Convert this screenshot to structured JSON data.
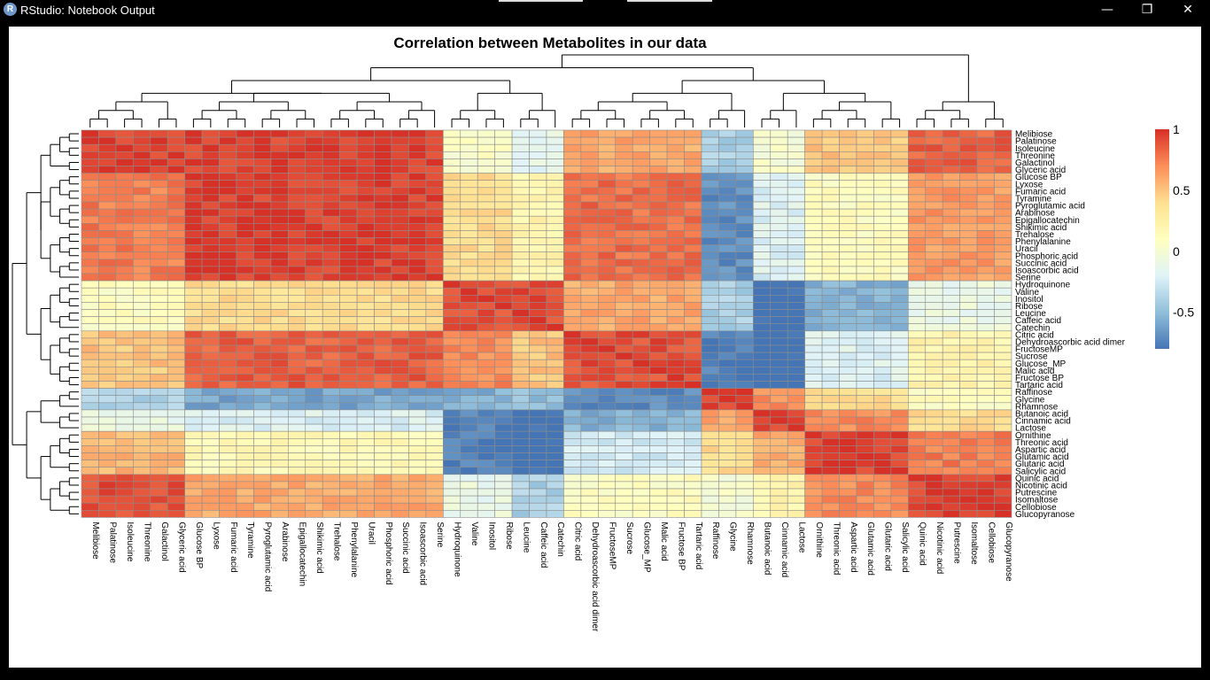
{
  "window": {
    "title": "RStudio: Notebook Output",
    "icon": "r-logo-icon",
    "controls": {
      "minimize": "—",
      "maximize": "❐",
      "close": "✕"
    }
  },
  "chart_data": {
    "type": "heatmap",
    "title": "Correlation between Metabolites in our data",
    "row_labels": [
      "Melibiose",
      "Palatinose",
      "Isoleucine",
      "Threonine",
      "Galactinol",
      "Glyceric acid",
      "Glucose BP",
      "Lyxose",
      "Fumaric acid",
      "Tyramine",
      "Pyroglutamic acid",
      "Arabinose",
      "Epigallocatechin",
      "Shikimic acid",
      "Trehalose",
      "Phenylalanine",
      "Uracil",
      "Phosphoric acid",
      "Succinic acid",
      "Isoascorbic acid",
      "Serine",
      "Hydroquinone",
      "Valine",
      "Inositol",
      "Ribose",
      "Leucine",
      "Caffeic acid",
      "Catechin",
      "Citric acid",
      "Dehydroascorbic acid dimer",
      "FructoseMP",
      "Sucrose",
      "Glucose_MP",
      "Malic acid",
      "Fructose BP",
      "Tartaric acid",
      "Raffinose",
      "Glycine",
      "Rhamnose",
      "Butanoic acid",
      "Cinnamic acid",
      "Lactose",
      "Ornithine",
      "Threonic acid",
      "Aspartic acid",
      "Glutamic acid",
      "Glutaric acid",
      "Salicylic acid",
      "Quinic acid",
      "Nicotinic acid",
      "Putrescine",
      "Isomaltose",
      "Cellobiose",
      "Glucopyranose"
    ],
    "column_labels": [
      "Melibiose",
      "Palatinose",
      "Isoleucine",
      "Threonine",
      "Galactinol",
      "Glyceric acid",
      "Glucose BP",
      "Lyxose",
      "Fumaric acid",
      "Tyramine",
      "Pyroglutamic acid",
      "Arabinose",
      "Epigallocatechin",
      "Shikimic acid",
      "Trehalose",
      "Phenylalanine",
      "Uracil",
      "Phosphoric acid",
      "Succinic acid",
      "Isoascorbic acid",
      "Serine",
      "Hydroquinone",
      "Valine",
      "Inositol",
      "Ribose",
      "Leucine",
      "Caffeic acid",
      "Catechin",
      "Citric acid",
      "Dehydroascorbic acid dimer",
      "FructoseMP",
      "Sucrose",
      "Glucose_MP",
      "Malic acid",
      "Fructose BP",
      "Tartaric acid",
      "Raffinose",
      "Glycine",
      "Rhamnose",
      "Butanoic acid",
      "Cinnamic acid",
      "Lactose",
      "Ornithine",
      "Threonic acid",
      "Aspartic acid",
      "Glutamic acid",
      "Glutaric acid",
      "Salicylic acid",
      "Quinic acid",
      "Nicotinic acid",
      "Putrescine",
      "Isomaltose",
      "Cellobiose",
      "Glucopyranose"
    ],
    "column_groups": [
      {
        "labels": [
          "Melibiose",
          "Palatinose",
          "Isoleucine",
          "Threonine",
          "Galactinol",
          "Glyceric acid"
        ]
      },
      {
        "labels": [
          "Glucose BP",
          "Lyxose",
          "Fumaric acid",
          "Tyramine",
          "Pyroglutamic acid",
          "Arabinose",
          "Epigallocatechin",
          "Shikimic acid",
          "Trehalose",
          "Phenylalanine",
          "Uracil",
          "Phosphoric acid",
          "Succinic acid",
          "Isoascorbic acid",
          "Serine"
        ]
      },
      {
        "labels": [
          "Hydroquinone",
          "Valine",
          "Inositol",
          "Ribose"
        ]
      },
      {
        "labels": [
          "Leucine",
          "Caffeic acid",
          "Catechin"
        ]
      },
      {
        "labels": [
          "Citric acid",
          "Dehydroascorbic acid dimer",
          "FructoseMP",
          "Sucrose",
          "Glucose_MP",
          "Malic acid",
          "Fructose BP",
          "Tartaric acid"
        ]
      },
      {
        "labels": [
          "Raffinose",
          "Glycine",
          "Rhamnose"
        ]
      },
      {
        "labels": [
          "Butanoic acid",
          "Cinnamic acid",
          "Lactose"
        ]
      },
      {
        "labels": [
          "Ornithine",
          "Threonic acid",
          "Aspartic acid",
          "Glutamic acid",
          "Glutaric acid",
          "Salicylic acid"
        ]
      },
      {
        "labels": [
          "Quinic acid",
          "Nicotinic acid",
          "Putrescine",
          "Isomaltose",
          "Cellobiose",
          "Glucopyranose"
        ]
      }
    ],
    "row_groups": [
      {
        "labels": [
          "Melibiose",
          "Palatinose",
          "Isoleucine",
          "Threonine",
          "Galactinol",
          "Glyceric acid"
        ]
      },
      {
        "labels": [
          "Glucose BP",
          "Lyxose",
          "Fumaric acid",
          "Tyramine",
          "Pyroglutamic acid",
          "Arabinose",
          "Epigallocatechin",
          "Shikimic acid",
          "Trehalose",
          "Phenylalanine",
          "Uracil",
          "Phosphoric acid",
          "Succinic acid",
          "Isoascorbic acid",
          "Serine"
        ]
      },
      {
        "labels": [
          "Hydroquinone",
          "Valine",
          "Inositol",
          "Ribose",
          "Leucine",
          "Caffeic acid",
          "Catechin"
        ]
      },
      {
        "labels": [
          "Citric acid",
          "Dehydroascorbic acid dimer",
          "FructoseMP",
          "Sucrose",
          "Glucose_MP",
          "Malic acid",
          "Fructose BP",
          "Tartaric acid"
        ]
      },
      {
        "labels": [
          "Raffinose",
          "Glycine",
          "Rhamnose"
        ]
      },
      {
        "labels": [
          "Butanoic acid",
          "Cinnamic acid",
          "Lactose"
        ]
      },
      {
        "labels": [
          "Ornithine",
          "Threonic acid",
          "Aspartic acid",
          "Glutamic acid",
          "Glutaric acid",
          "Salicylic acid"
        ]
      },
      {
        "labels": [
          "Quinic acid",
          "Nicotinic acid",
          "Putrescine",
          "Isomaltose",
          "Cellobiose",
          "Glucopyranose"
        ]
      }
    ],
    "block_correlations": [
      [
        0.95,
        0.95,
        0.05,
        -0.15,
        0.6,
        -0.4,
        0.0,
        0.5,
        0.85
      ],
      [
        0.75,
        0.95,
        0.4,
        0.2,
        0.8,
        -0.7,
        -0.2,
        0.1,
        0.65
      ],
      [
        0.1,
        0.4,
        0.9,
        0.9,
        0.6,
        -0.4,
        -0.85,
        -0.55,
        -0.1
      ],
      [
        0.5,
        0.85,
        0.7,
        0.5,
        0.9,
        -0.75,
        -0.85,
        -0.2,
        0.2
      ],
      [
        -0.4,
        -0.6,
        -0.55,
        -0.5,
        -0.7,
        0.95,
        0.7,
        0.4,
        0.1
      ],
      [
        -0.1,
        -0.2,
        -0.75,
        -0.85,
        -0.55,
        0.6,
        0.9,
        0.7,
        0.4
      ],
      [
        0.55,
        0.15,
        -0.75,
        -0.85,
        -0.25,
        0.4,
        0.6,
        0.95,
        0.75
      ],
      [
        0.9,
        0.6,
        -0.1,
        -0.4,
        0.1,
        0.0,
        0.2,
        0.7,
        0.95
      ]
    ],
    "legend": {
      "ticks": [
        1,
        0.5,
        0,
        -0.5
      ],
      "tick_labels": [
        "1",
        "0.5",
        "0",
        "-0.5"
      ],
      "range": [
        -0.8,
        1
      ],
      "colors": [
        "#4575b4",
        "#91bfdb",
        "#e0f3f8",
        "#ffffbf",
        "#fee090",
        "#fc8d59",
        "#d73027"
      ]
    },
    "dendrograms": {
      "rows": true,
      "columns": true
    },
    "cell_border_color": "#8c8c8c"
  }
}
